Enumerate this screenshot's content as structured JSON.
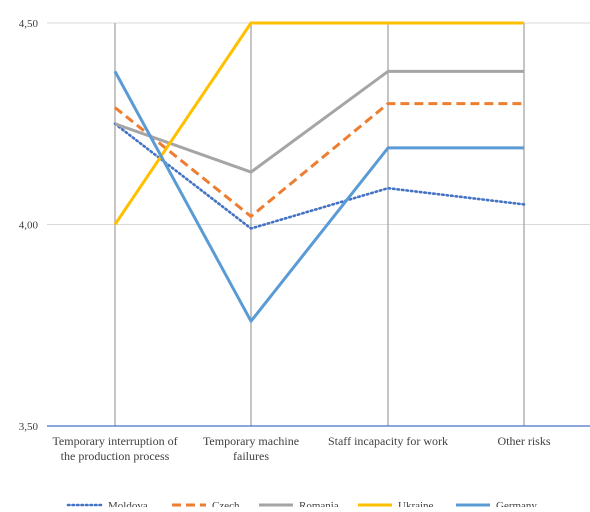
{
  "chart_data": {
    "type": "line",
    "categories": [
      [
        "Temporary interruption of",
        "the production process"
      ],
      [
        "Temporary machine",
        "failures"
      ],
      [
        "Staff incapacity for work"
      ],
      [
        "Other risks"
      ]
    ],
    "ylim": [
      3.5,
      4.5
    ],
    "yticks": [
      "3,50",
      "4,00",
      "4,50"
    ],
    "ytick_values": [
      3.5,
      4.0,
      4.5
    ],
    "grid": true,
    "legend_position": "bottom",
    "series": [
      {
        "name": "Moldova",
        "values": [
          4.25,
          3.99,
          4.09,
          4.05
        ],
        "color": "#4472C4",
        "style": "dotted"
      },
      {
        "name": "Czech",
        "values": [
          4.29,
          4.02,
          4.3,
          4.3
        ],
        "color": "#ED7D31",
        "style": "dashed"
      },
      {
        "name": "Romania",
        "values": [
          4.25,
          4.13,
          4.38,
          4.38
        ],
        "color": "#A5A5A5",
        "style": "solid"
      },
      {
        "name": "Ukraine",
        "values": [
          4.0,
          4.5,
          4.5,
          4.5
        ],
        "color": "#FFC000",
        "style": "solid"
      },
      {
        "name": "Germany",
        "values": [
          4.38,
          3.76,
          4.19,
          4.19
        ],
        "color": "#5B9BD5",
        "style": "solid"
      }
    ]
  }
}
